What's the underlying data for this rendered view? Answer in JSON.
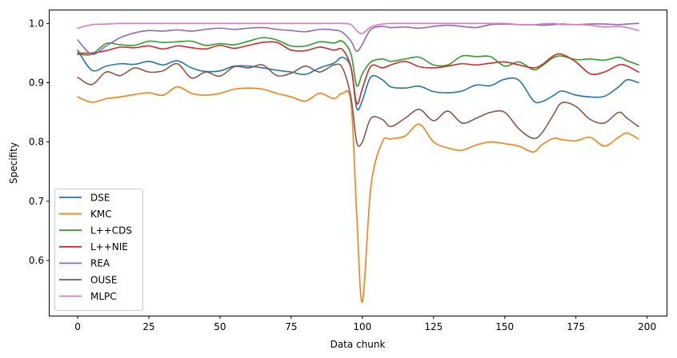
{
  "chart_data": {
    "type": "line",
    "xlabel": "Data chunk",
    "ylabel": "Specifity",
    "xlim": [
      -9.85,
      206.85
    ],
    "ylim": [
      0.507,
      1.022
    ],
    "xticks": [
      0,
      25,
      50,
      75,
      100,
      125,
      150,
      175,
      200
    ],
    "yticks": [
      0.6,
      0.7,
      0.8,
      0.9,
      1.0
    ],
    "ytick_labels": [
      "0.6",
      "0.7",
      "0.8",
      "0.9",
      "1.0"
    ],
    "grid": false,
    "legend_position": "lower-left",
    "x": [
      0,
      5,
      10,
      15,
      20,
      25,
      30,
      35,
      40,
      45,
      50,
      55,
      60,
      65,
      70,
      75,
      80,
      85,
      90,
      93,
      96,
      98,
      100,
      103,
      107,
      110,
      115,
      120,
      125,
      130,
      135,
      140,
      145,
      150,
      155,
      160,
      163,
      167,
      170,
      175,
      180,
      185,
      190,
      193,
      197
    ],
    "series": [
      {
        "name": "DSE",
        "color": "#1f77b4",
        "values": [
          0.955,
          0.921,
          0.928,
          0.932,
          0.931,
          0.936,
          0.93,
          0.937,
          0.925,
          0.919,
          0.92,
          0.928,
          0.928,
          0.925,
          0.921,
          0.918,
          0.914,
          0.925,
          0.933,
          0.943,
          0.925,
          0.857,
          0.87,
          0.91,
          0.905,
          0.893,
          0.891,
          0.894,
          0.885,
          0.883,
          0.886,
          0.896,
          0.895,
          0.906,
          0.904,
          0.87,
          0.868,
          0.878,
          0.886,
          0.879,
          0.876,
          0.877,
          0.893,
          0.905,
          0.9
        ]
      },
      {
        "name": "KMC",
        "color": "#ff7f0e",
        "values": [
          0.876,
          0.867,
          0.873,
          0.876,
          0.88,
          0.883,
          0.879,
          0.893,
          0.882,
          0.879,
          0.882,
          0.889,
          0.891,
          0.889,
          0.882,
          0.876,
          0.869,
          0.882,
          0.873,
          0.882,
          0.866,
          0.68,
          0.53,
          0.725,
          0.8,
          0.805,
          0.81,
          0.83,
          0.8,
          0.79,
          0.786,
          0.795,
          0.8,
          0.797,
          0.793,
          0.783,
          0.795,
          0.806,
          0.804,
          0.802,
          0.808,
          0.793,
          0.808,
          0.815,
          0.805
        ]
      },
      {
        "name": "L++CDS",
        "color": "#2ca02c",
        "values": [
          0.948,
          0.948,
          0.966,
          0.964,
          0.963,
          0.97,
          0.968,
          0.969,
          0.97,
          0.963,
          0.966,
          0.964,
          0.97,
          0.976,
          0.972,
          0.962,
          0.962,
          0.969,
          0.967,
          0.97,
          0.948,
          0.895,
          0.915,
          0.935,
          0.94,
          0.936,
          0.94,
          0.943,
          0.93,
          0.93,
          0.945,
          0.944,
          0.944,
          0.928,
          0.935,
          0.922,
          0.928,
          0.942,
          0.945,
          0.939,
          0.94,
          0.938,
          0.943,
          0.937,
          0.93
        ]
      },
      {
        "name": "L++NIE",
        "color": "#d62728",
        "values": [
          0.95,
          0.95,
          0.954,
          0.96,
          0.959,
          0.962,
          0.957,
          0.962,
          0.959,
          0.957,
          0.963,
          0.958,
          0.963,
          0.968,
          0.968,
          0.955,
          0.954,
          0.96,
          0.955,
          0.956,
          0.926,
          0.865,
          0.89,
          0.928,
          0.925,
          0.93,
          0.936,
          0.927,
          0.925,
          0.928,
          0.932,
          0.93,
          0.933,
          0.935,
          0.93,
          0.925,
          0.93,
          0.945,
          0.948,
          0.935,
          0.915,
          0.918,
          0.93,
          0.928,
          0.918
        ]
      },
      {
        "name": "REA",
        "color": "#9467bd",
        "values": [
          0.972,
          0.948,
          0.962,
          0.976,
          0.984,
          0.988,
          0.987,
          0.989,
          0.987,
          0.99,
          0.992,
          0.99,
          0.992,
          0.993,
          0.99,
          0.988,
          0.986,
          0.99,
          0.989,
          0.985,
          0.97,
          0.953,
          0.965,
          0.99,
          0.995,
          0.993,
          0.994,
          0.992,
          0.995,
          0.997,
          0.995,
          0.993,
          0.998,
          0.999,
          0.998,
          0.998,
          0.997,
          0.998,
          0.999,
          0.998,
          0.999,
          0.999,
          0.998,
          0.999,
          1.0
        ]
      },
      {
        "name": "OUSE",
        "color": "#8c564b",
        "values": [
          0.909,
          0.897,
          0.918,
          0.912,
          0.925,
          0.918,
          0.92,
          0.932,
          0.908,
          0.918,
          0.911,
          0.927,
          0.925,
          0.93,
          0.912,
          0.916,
          0.928,
          0.918,
          0.93,
          0.925,
          0.875,
          0.8,
          0.8,
          0.84,
          0.838,
          0.826,
          0.84,
          0.855,
          0.836,
          0.852,
          0.832,
          0.84,
          0.85,
          0.85,
          0.822,
          0.806,
          0.815,
          0.845,
          0.866,
          0.86,
          0.838,
          0.832,
          0.85,
          0.84,
          0.826
        ]
      },
      {
        "name": "MLPC",
        "color": "#e377c2",
        "values": [
          0.992,
          0.998,
          0.999,
          1.0,
          1.0,
          1.0,
          1.0,
          1.0,
          1.0,
          1.0,
          1.0,
          1.0,
          1.0,
          1.0,
          1.0,
          1.0,
          1.0,
          1.0,
          1.0,
          1.0,
          0.998,
          0.988,
          0.983,
          0.994,
          0.999,
          1.0,
          1.0,
          1.0,
          1.0,
          1.0,
          1.0,
          1.0,
          1.0,
          1.0,
          0.998,
          0.998,
          0.999,
          1.0,
          0.998,
          0.998,
          0.997,
          0.994,
          0.995,
          0.993,
          0.988
        ]
      }
    ]
  }
}
